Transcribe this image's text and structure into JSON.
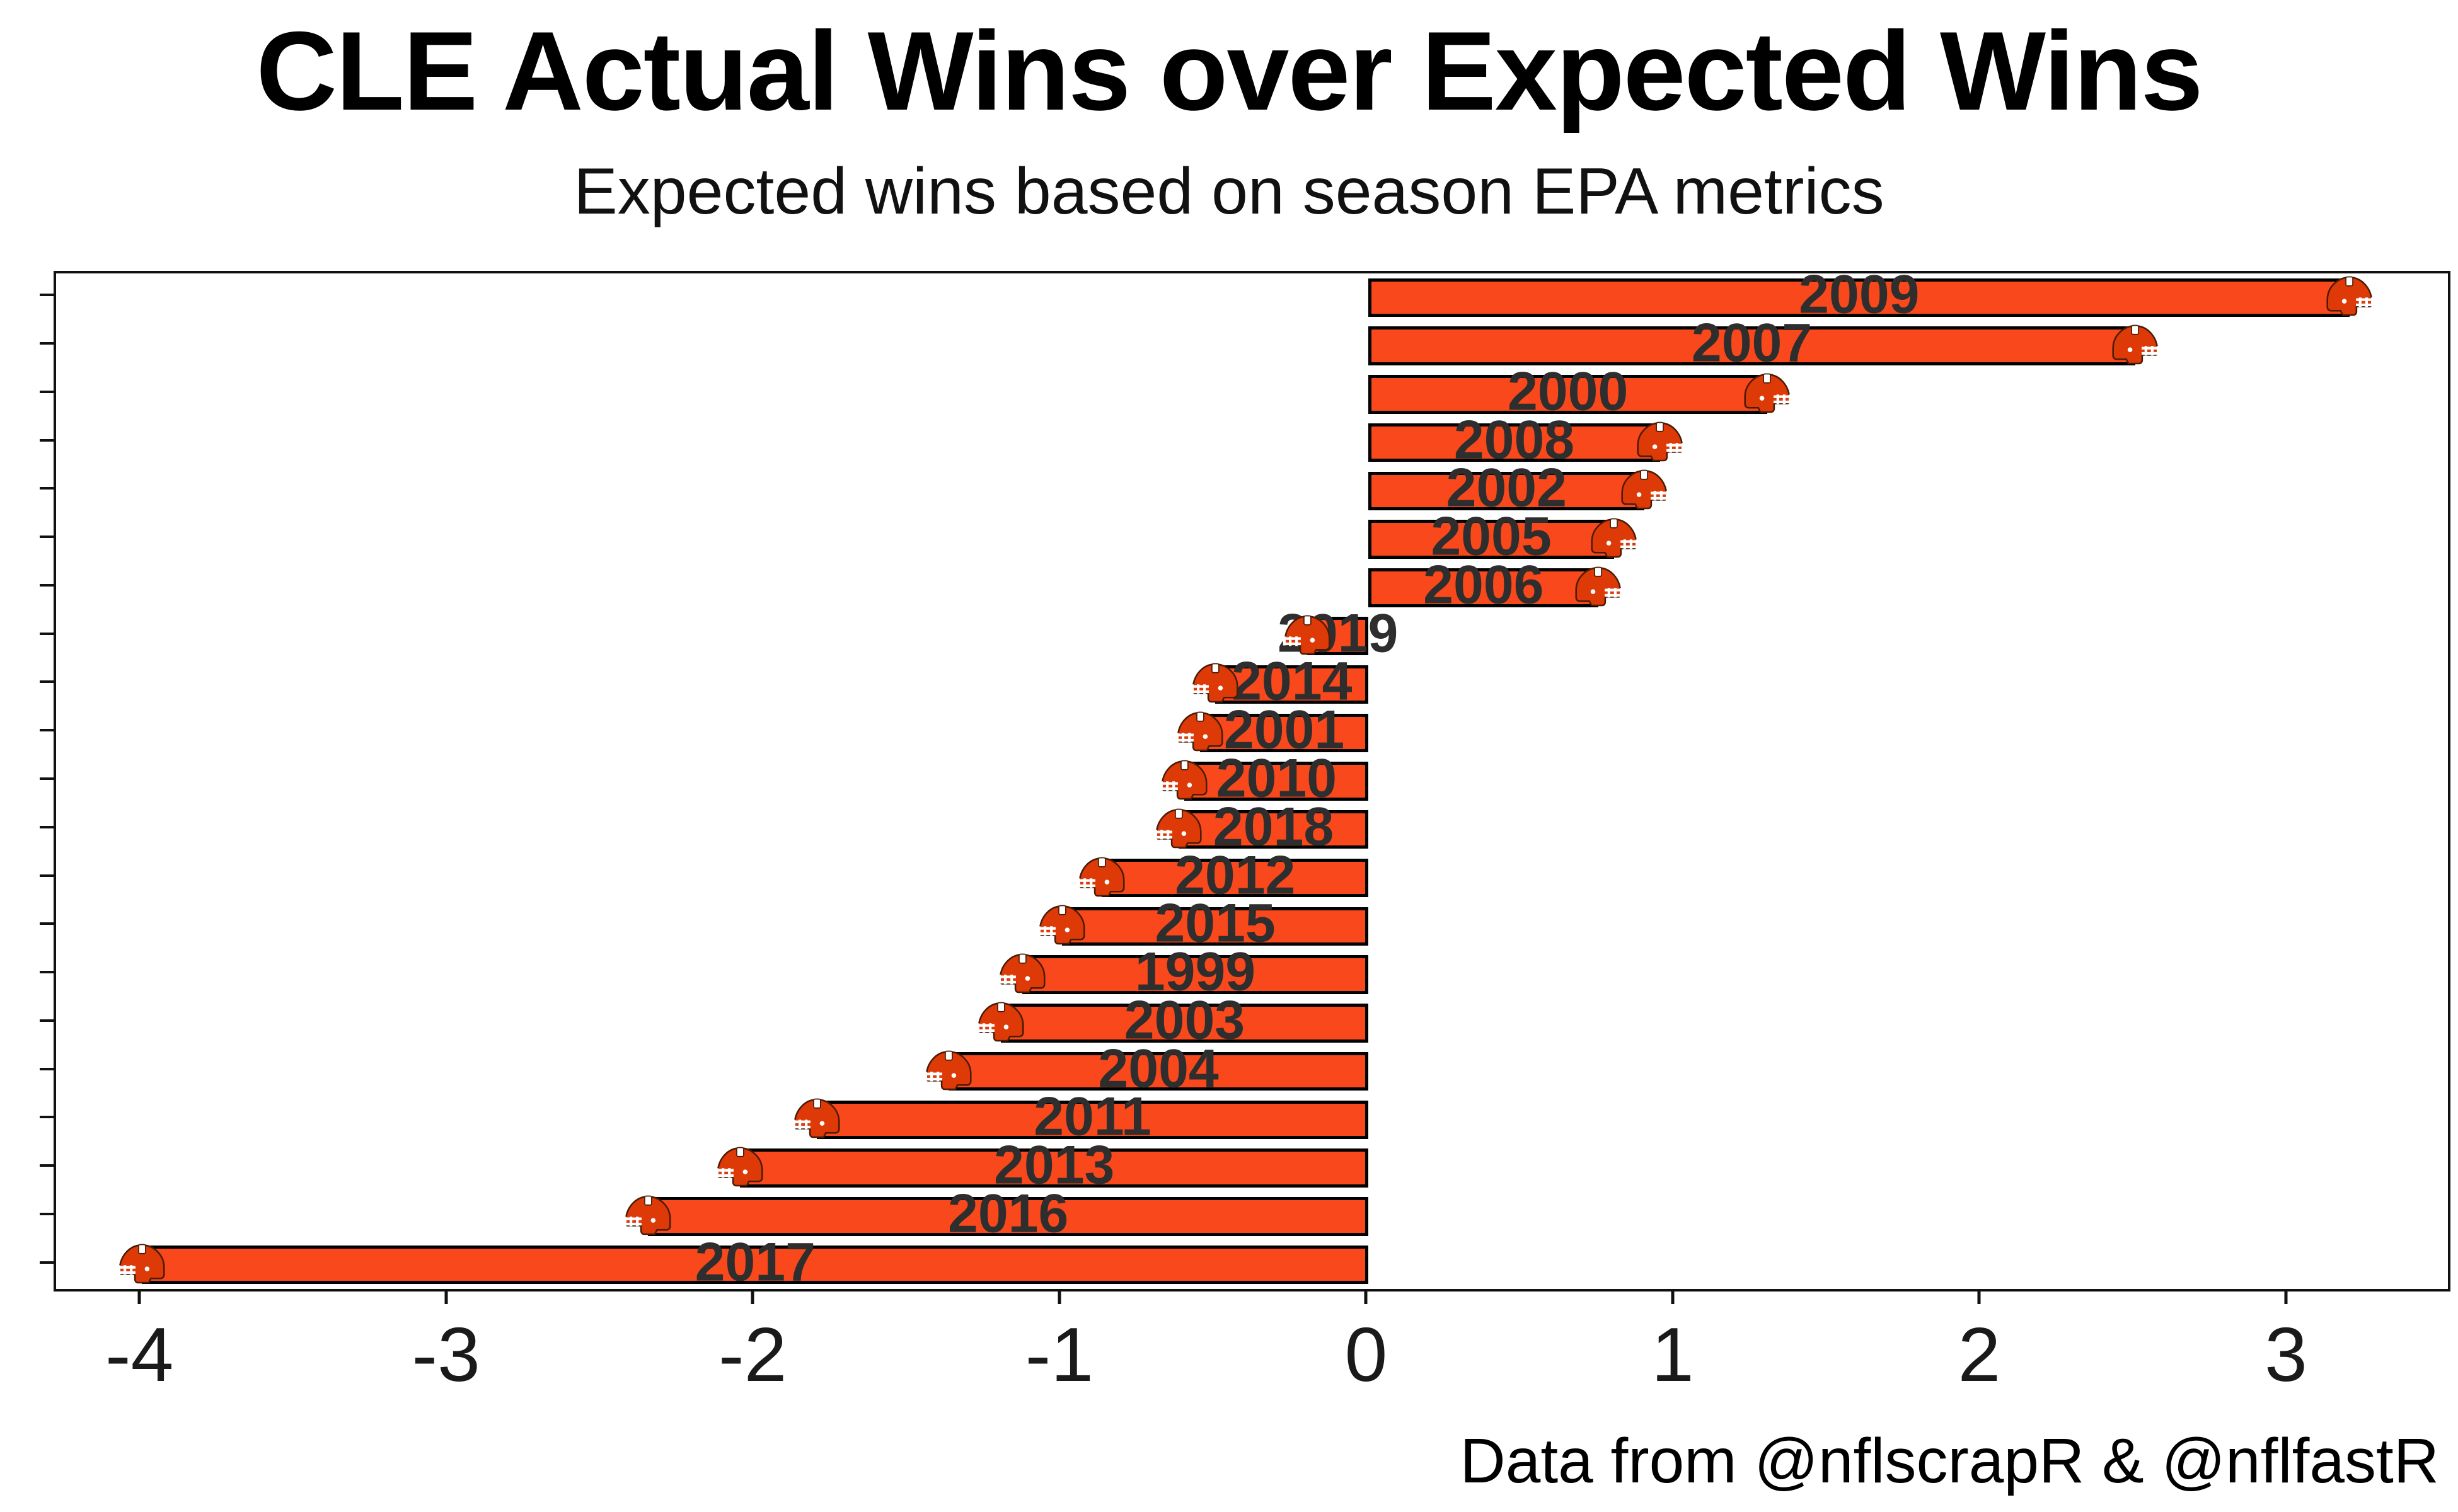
{
  "title": "CLE Actual Wins over Expected Wins",
  "subtitle": "Expected wins based on season EPA metrics",
  "caption": "Data from @nflscrapR & @nflfastR",
  "colors": {
    "bar": "#F8481C",
    "bar_outline": "#000000",
    "helmet_shell": "#DE3A08",
    "helmet_detail": "#ffffff",
    "year_label": "#2e2e2e",
    "axis": "#111111"
  },
  "icons": {
    "bar_tip_icon": "browns-helmet-icon"
  },
  "chart_data": {
    "type": "bar",
    "orientation": "horizontal",
    "title": "CLE Actual Wins over Expected Wins",
    "subtitle": "Expected wins based on season EPA metrics",
    "caption": "Data from @nflscrapR & @nflfastR",
    "xlabel": "",
    "ylabel": "",
    "categories": [
      "2009",
      "2007",
      "2000",
      "2008",
      "2002",
      "2005",
      "2006",
      "2019",
      "2014",
      "2001",
      "2010",
      "2018",
      "2012",
      "2015",
      "1999",
      "2003",
      "2004",
      "2011",
      "2013",
      "2016",
      "2017"
    ],
    "values": [
      3.2,
      2.5,
      1.3,
      0.95,
      0.9,
      0.8,
      0.75,
      -0.2,
      -0.5,
      -0.55,
      -0.6,
      -0.62,
      -0.87,
      -1.0,
      -1.13,
      -1.2,
      -1.37,
      -1.8,
      -2.05,
      -2.35,
      -4.0
    ],
    "bar_label_position": "center-of-bar",
    "x_ticks": [
      -4,
      -3,
      -2,
      -1,
      0,
      1,
      2,
      3
    ],
    "x_tick_labels": [
      "-4",
      "-3",
      "-2",
      "-1",
      "0",
      "1",
      "2",
      "3"
    ],
    "xlim": [
      -4.28,
      3.52
    ],
    "grid": false,
    "legend": "none"
  }
}
